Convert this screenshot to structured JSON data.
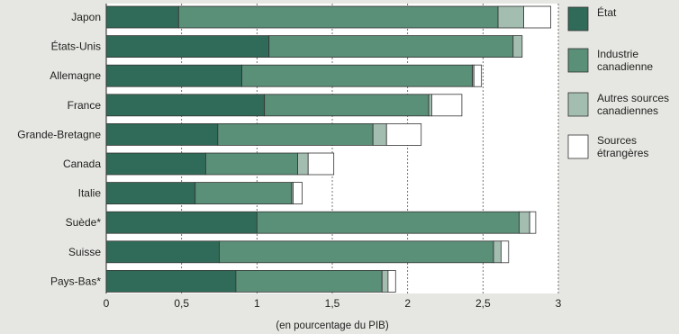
{
  "chart_data": {
    "type": "bar",
    "stacked": true,
    "orientation": "horizontal",
    "categories": [
      "Japon",
      "États-Unis",
      "Allemagne",
      "France",
      "Grande-Bretagne",
      "Canada",
      "Italie",
      "Suède*",
      "Suisse",
      "Pays-Bas*"
    ],
    "series": [
      {
        "name": "État",
        "color": "#2f6b58",
        "values": [
          0.48,
          1.08,
          0.9,
          1.05,
          0.74,
          0.66,
          0.59,
          1.0,
          0.75,
          0.86
        ]
      },
      {
        "name": "Industrie canadienne",
        "color": "#5a8f78",
        "values": [
          2.12,
          1.62,
          1.53,
          1.09,
          1.03,
          0.61,
          0.64,
          1.74,
          1.82,
          0.97
        ]
      },
      {
        "name": "Autres sources canadiennes",
        "color": "#a4bdb1",
        "values": [
          0.17,
          0.06,
          0.01,
          0.02,
          0.09,
          0.07,
          0.01,
          0.07,
          0.05,
          0.04
        ]
      },
      {
        "name": "Sources étrangères",
        "color": "#ffffff",
        "values": [
          0.18,
          0.0,
          0.05,
          0.2,
          0.23,
          0.17,
          0.06,
          0.04,
          0.05,
          0.05
        ]
      }
    ],
    "xticks": [
      "0",
      "0,5",
      "1",
      "1,5",
      "2",
      "2,5",
      "3"
    ],
    "xlim": [
      0,
      3
    ],
    "xlabel": "(en pourcentage du PIB)",
    "legend_position": "right",
    "gridlines": "dotted-vertical"
  }
}
